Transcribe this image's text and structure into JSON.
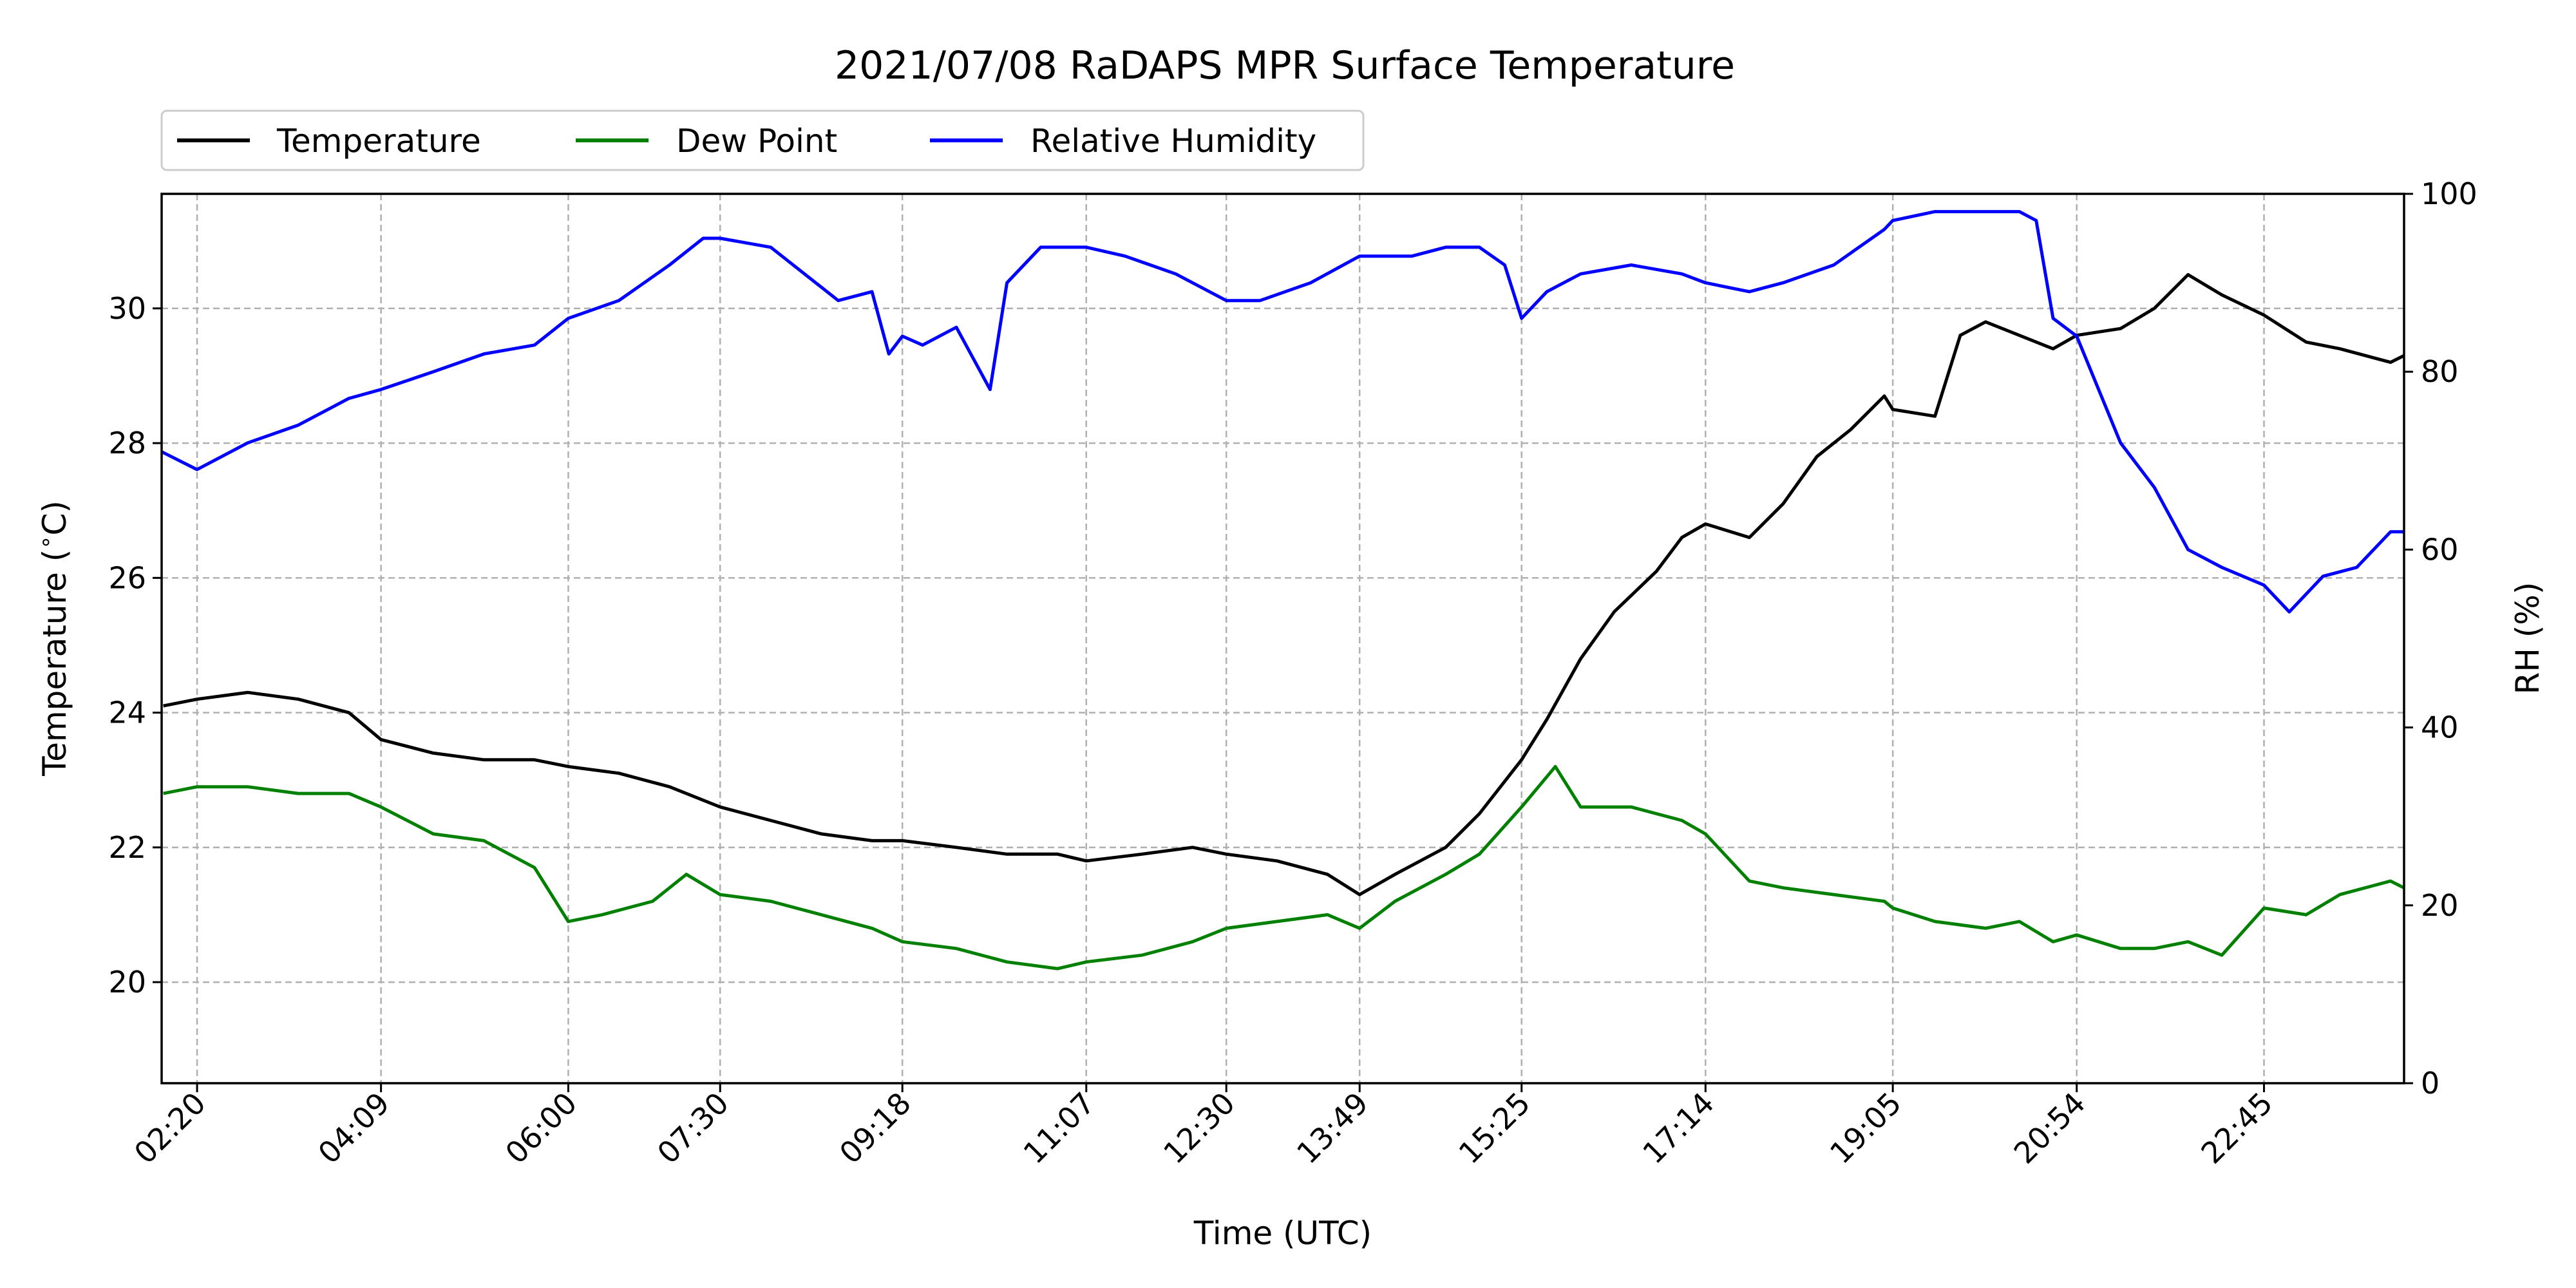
{
  "chart_data": {
    "type": "line",
    "title": "2021/07/08 RaDAPS MPR Surface Temperature",
    "xlabel": "Time (UTC)",
    "ylabel_left": "Temperature ($^\\circ$C)",
    "ylabel_left_display": "Temperature (",
    "ylabel_left_degree": "∘",
    "ylabel_left_unit": "C)",
    "ylabel_right": "RH (%)",
    "ylim_left": [
      18.5,
      31.7
    ],
    "ylim_right": [
      0,
      100
    ],
    "xlim": [
      "01:59",
      "24:08"
    ],
    "grid": true,
    "legend_position": "top-left, above plot",
    "x_tick_labels": [
      "02:20",
      "04:09",
      "06:00",
      "07:30",
      "09:18",
      "11:07",
      "12:30",
      "13:49",
      "15:25",
      "17:14",
      "19:05",
      "20:54",
      "22:45"
    ],
    "y_left_ticks": [
      "20",
      "22",
      "24",
      "26",
      "28",
      "30"
    ],
    "y_right_ticks": [
      "0",
      "20",
      "40",
      "60",
      "80",
      "100"
    ],
    "series": [
      {
        "name": "Temperature",
        "axis": "left",
        "color": "#000000",
        "x": [
          "02:00",
          "02:20",
          "02:50",
          "03:20",
          "03:50",
          "04:09",
          "04:40",
          "05:10",
          "05:40",
          "06:00",
          "06:30",
          "07:00",
          "07:30",
          "08:00",
          "08:30",
          "09:00",
          "09:18",
          "09:50",
          "10:20",
          "10:50",
          "11:07",
          "11:40",
          "12:10",
          "12:30",
          "13:00",
          "13:30",
          "13:49",
          "14:10",
          "14:40",
          "15:00",
          "15:25",
          "15:40",
          "16:00",
          "16:20",
          "16:45",
          "17:00",
          "17:14",
          "17:40",
          "18:00",
          "18:20",
          "18:40",
          "19:00",
          "19:05",
          "19:30",
          "19:45",
          "20:00",
          "20:20",
          "20:40",
          "20:54",
          "21:20",
          "21:40",
          "22:00",
          "22:20",
          "22:45",
          "23:10",
          "23:30",
          "24:00",
          "24:08"
        ],
        "y": [
          24.1,
          24.2,
          24.3,
          24.2,
          24.0,
          23.6,
          23.4,
          23.3,
          23.3,
          23.2,
          23.1,
          22.9,
          22.6,
          22.4,
          22.2,
          22.1,
          22.1,
          22.0,
          21.9,
          21.9,
          21.8,
          21.9,
          22.0,
          21.9,
          21.8,
          21.6,
          21.3,
          21.6,
          22.0,
          22.5,
          23.3,
          23.9,
          24.8,
          25.5,
          26.1,
          26.6,
          26.8,
          26.6,
          27.1,
          27.8,
          28.2,
          28.7,
          28.5,
          28.4,
          29.6,
          29.8,
          29.6,
          29.4,
          29.6,
          29.7,
          30.0,
          30.5,
          30.2,
          29.9,
          29.5,
          29.4,
          29.2,
          29.3
        ]
      },
      {
        "name": "Dew Point",
        "axis": "left",
        "color": "#008000",
        "x": [
          "02:00",
          "02:20",
          "02:50",
          "03:20",
          "03:50",
          "04:09",
          "04:40",
          "05:10",
          "05:40",
          "06:00",
          "06:20",
          "06:50",
          "07:10",
          "07:30",
          "08:00",
          "08:30",
          "09:00",
          "09:18",
          "09:50",
          "10:20",
          "10:50",
          "11:07",
          "11:40",
          "12:10",
          "12:30",
          "13:00",
          "13:30",
          "13:49",
          "14:10",
          "14:40",
          "15:00",
          "15:25",
          "15:45",
          "16:00",
          "16:30",
          "17:00",
          "17:14",
          "17:40",
          "18:00",
          "18:30",
          "19:00",
          "19:05",
          "19:30",
          "20:00",
          "20:20",
          "20:40",
          "20:54",
          "21:20",
          "21:40",
          "22:00",
          "22:20",
          "22:45",
          "23:10",
          "23:30",
          "24:00",
          "24:08"
        ],
        "y": [
          22.8,
          22.9,
          22.9,
          22.8,
          22.8,
          22.6,
          22.2,
          22.1,
          21.7,
          20.9,
          21.0,
          21.2,
          21.6,
          21.3,
          21.2,
          21.0,
          20.8,
          20.6,
          20.5,
          20.3,
          20.2,
          20.3,
          20.4,
          20.6,
          20.8,
          20.9,
          21.0,
          20.8,
          21.2,
          21.6,
          21.9,
          22.6,
          23.2,
          22.6,
          22.6,
          22.4,
          22.2,
          21.5,
          21.4,
          21.3,
          21.2,
          21.1,
          20.9,
          20.8,
          20.9,
          20.6,
          20.7,
          20.5,
          20.5,
          20.6,
          20.4,
          21.1,
          21.0,
          21.3,
          21.5,
          21.4
        ]
      },
      {
        "name": "Relative Humidity",
        "axis": "right",
        "color": "#0000ff",
        "x": [
          "01:59",
          "02:20",
          "02:50",
          "03:20",
          "03:50",
          "04:09",
          "04:40",
          "05:10",
          "05:40",
          "06:00",
          "06:30",
          "07:00",
          "07:20",
          "07:30",
          "08:00",
          "08:20",
          "08:40",
          "09:00",
          "09:10",
          "09:18",
          "09:30",
          "09:50",
          "10:10",
          "10:20",
          "10:40",
          "11:07",
          "11:30",
          "12:00",
          "12:30",
          "12:50",
          "13:20",
          "13:49",
          "14:20",
          "14:40",
          "15:00",
          "15:15",
          "15:25",
          "15:40",
          "16:00",
          "16:30",
          "17:00",
          "17:14",
          "17:40",
          "18:00",
          "18:30",
          "19:00",
          "19:05",
          "19:30",
          "20:00",
          "20:20",
          "20:30",
          "20:40",
          "20:54",
          "21:20",
          "21:40",
          "22:00",
          "22:20",
          "22:45",
          "23:00",
          "23:20",
          "23:40",
          "24:00",
          "24:08"
        ],
        "y": [
          71,
          69,
          72,
          74,
          77,
          78,
          80,
          82,
          83,
          86,
          88,
          92,
          95,
          95,
          94,
          91,
          88,
          89,
          82,
          84,
          83,
          85,
          78,
          90,
          94,
          94,
          93,
          91,
          88,
          88,
          90,
          93,
          93,
          94,
          94,
          92,
          86,
          89,
          91,
          92,
          91,
          90,
          89,
          90,
          92,
          96,
          97,
          98,
          98,
          98,
          97,
          86,
          84,
          72,
          67,
          60,
          58,
          56,
          53,
          57,
          58,
          62,
          62
        ]
      }
    ]
  }
}
